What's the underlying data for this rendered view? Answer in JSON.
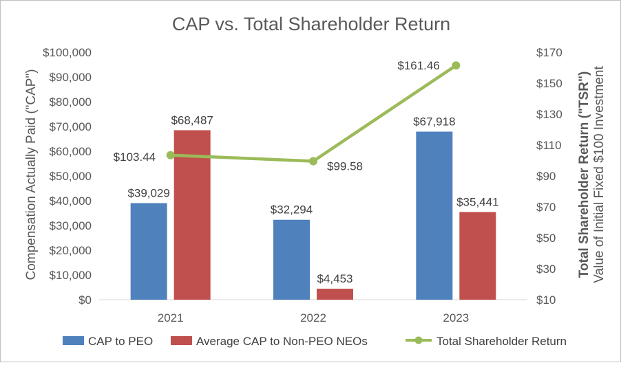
{
  "chart_data": {
    "type": "bar",
    "title": "CAP vs. Total Shareholder Return",
    "categories": [
      "2021",
      "2022",
      "2023"
    ],
    "series": [
      {
        "name": "CAP to PEO",
        "kind": "bar",
        "axis": "left",
        "color": "#4f81bd",
        "values": [
          39029,
          32294,
          67918
        ],
        "labels": [
          "$39,029",
          "$32,294",
          "$67,918"
        ]
      },
      {
        "name": "Average CAP to Non-PEO NEOs",
        "kind": "bar",
        "axis": "left",
        "color": "#c0504d",
        "values": [
          68487,
          4453,
          35441
        ],
        "labels": [
          "$68,487",
          "$4,453",
          "$35,441"
        ]
      },
      {
        "name": "Total Shareholder Return",
        "kind": "line",
        "axis": "right",
        "color": "#9bbb59",
        "values": [
          103.44,
          99.58,
          161.46
        ],
        "labels": [
          "$103.44",
          "$99.58",
          "$161.46"
        ]
      }
    ],
    "y_left": {
      "label": "Compensation Actually Paid (\"CAP\")",
      "min": 0,
      "max": 100000,
      "ticks": [
        0,
        10000,
        20000,
        30000,
        40000,
        50000,
        60000,
        70000,
        80000,
        90000,
        100000
      ],
      "tick_labels": [
        "$0",
        "$10,000",
        "$20,000",
        "$30,000",
        "$40,000",
        "$50,000",
        "$60,000",
        "$70,000",
        "$80,000",
        "$90,000",
        "$100,000"
      ]
    },
    "y_right": {
      "label_bold": "Total Shareholder Return (\"TSR\")",
      "label": "Value of Initial Fixed $100 Investment",
      "min": 10,
      "max": 170,
      "ticks": [
        10,
        30,
        50,
        70,
        90,
        110,
        130,
        150,
        170
      ],
      "tick_labels": [
        "$10",
        "$30",
        "$50",
        "$70",
        "$90",
        "$110",
        "$130",
        "$150",
        "$170"
      ]
    },
    "grid": false,
    "legend": "bottom",
    "legend_entries": [
      "CAP to PEO",
      "Average CAP to Non-PEO NEOs",
      "Total Shareholder Return"
    ]
  }
}
